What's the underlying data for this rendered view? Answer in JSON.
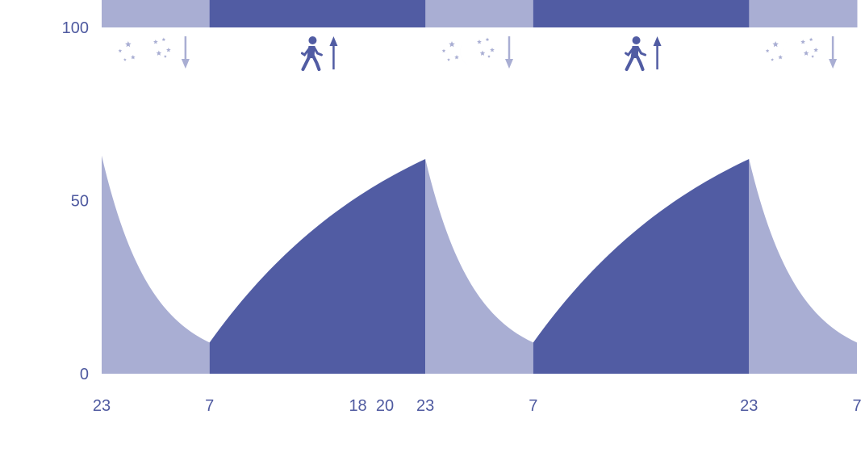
{
  "colors": {
    "sleep": "#a9aed3",
    "wake": "#515ca3",
    "label": "#4f5aa0"
  },
  "icons": {
    "sleep": [
      "moon-icon",
      "stars-icon",
      "arrow-down-icon"
    ],
    "wake": [
      "walking-person-icon",
      "arrow-up-icon"
    ]
  },
  "chart_data": {
    "type": "area",
    "title": "",
    "xlabel": "",
    "ylabel": "",
    "ylim": [
      0,
      100
    ],
    "y_ticks": [
      0,
      50,
      100
    ],
    "x_ticks": [
      {
        "t": 0,
        "label": "23"
      },
      {
        "t": 8,
        "label": "7"
      },
      {
        "t": 19,
        "label": "18"
      },
      {
        "t": 21,
        "label": "20"
      },
      {
        "t": 24,
        "label": "23"
      },
      {
        "t": 32,
        "label": "7"
      },
      {
        "t": 48,
        "label": "23"
      },
      {
        "t": 56,
        "label": "7"
      }
    ],
    "x_range": [
      0,
      56
    ],
    "grid": false,
    "legend": "none",
    "phases": [
      {
        "name": "sleep",
        "start": 0,
        "end": 8,
        "y_start": 63,
        "y_end": 9
      },
      {
        "name": "wake",
        "start": 8,
        "end": 24,
        "y_start": 9,
        "y_end": 62
      },
      {
        "name": "sleep",
        "start": 24,
        "end": 32,
        "y_start": 62,
        "y_end": 9
      },
      {
        "name": "wake",
        "start": 32,
        "end": 48,
        "y_start": 9,
        "y_end": 62
      },
      {
        "name": "sleep",
        "start": 48,
        "end": 56,
        "y_start": 62,
        "y_end": 9
      }
    ]
  }
}
